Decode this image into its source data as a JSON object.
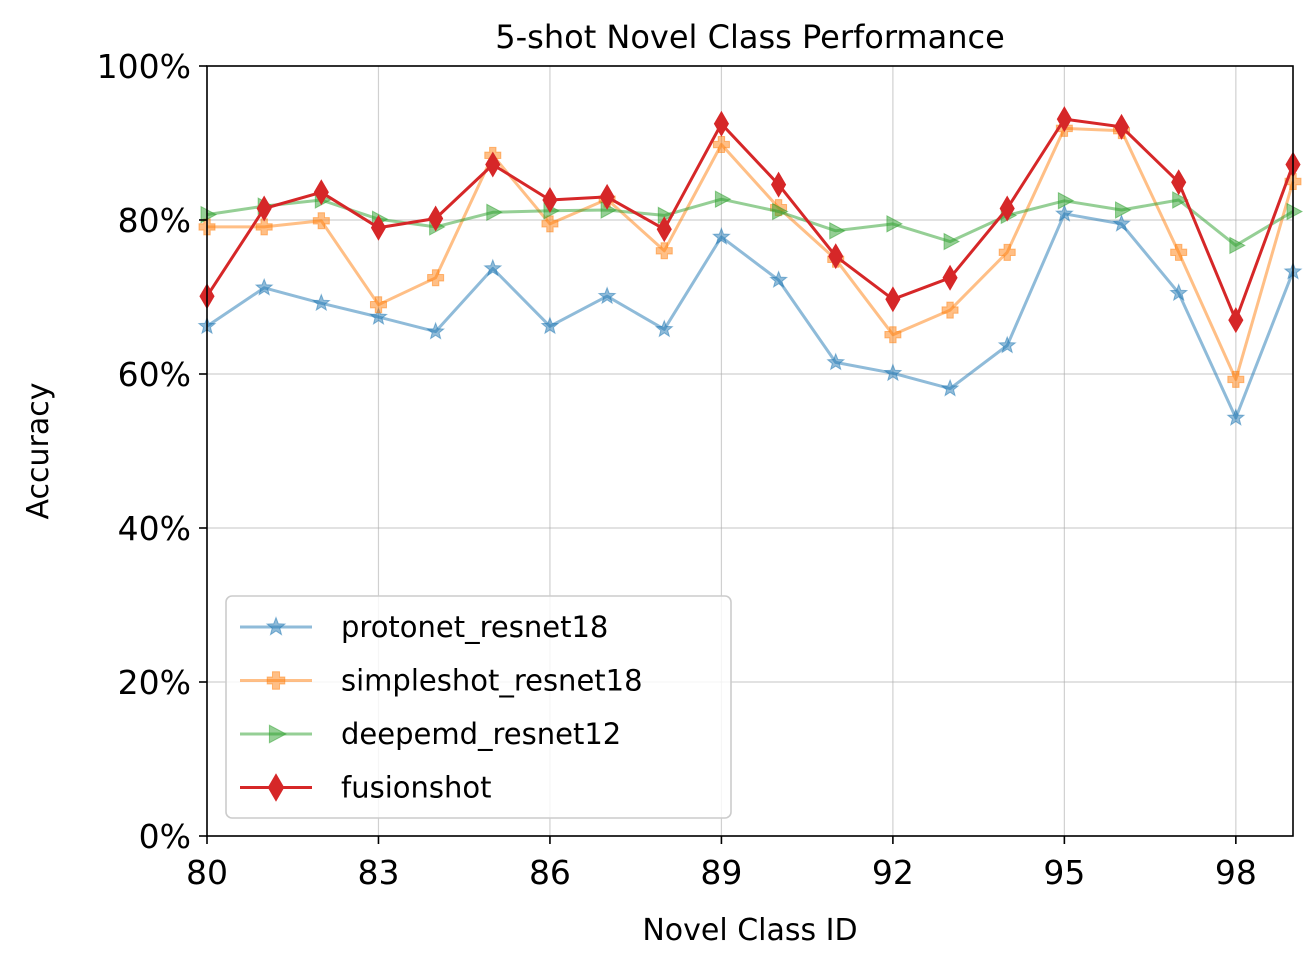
{
  "chart_data": {
    "type": "line",
    "title": "5-shot Novel Class Performance",
    "xlabel": "Novel Class ID",
    "ylabel": "Accuracy",
    "x": [
      80,
      81,
      82,
      83,
      84,
      85,
      86,
      87,
      88,
      89,
      90,
      91,
      92,
      93,
      94,
      95,
      96,
      97,
      98,
      99
    ],
    "xlim": [
      80,
      99
    ],
    "ylim": [
      0,
      1
    ],
    "xticks": [
      80,
      83,
      86,
      89,
      92,
      95,
      98
    ],
    "xtick_labels": [
      "80",
      "83",
      "86",
      "89",
      "92",
      "95",
      "98"
    ],
    "yticks": [
      0,
      0.2,
      0.4,
      0.6,
      0.8,
      1.0
    ],
    "ytick_labels": [
      "0%",
      "20%",
      "40%",
      "60%",
      "80%",
      "100%"
    ],
    "grid": true,
    "legend_position": "lower-left",
    "series": [
      {
        "name": "protonet_resnet18",
        "color": "#1f77b4",
        "alpha": 0.5,
        "marker": "star",
        "values": [
          0.662,
          0.712,
          0.692,
          0.674,
          0.655,
          0.737,
          0.662,
          0.701,
          0.658,
          0.778,
          0.722,
          0.615,
          0.601,
          0.581,
          0.637,
          0.808,
          0.795,
          0.705,
          0.543,
          0.733
        ]
      },
      {
        "name": "simpleshot_resnet18",
        "color": "#ff7f0e",
        "alpha": 0.5,
        "marker": "plus-filled",
        "values": [
          0.791,
          0.791,
          0.799,
          0.69,
          0.725,
          0.884,
          0.795,
          0.827,
          0.76,
          0.898,
          0.816,
          0.749,
          0.651,
          0.683,
          0.758,
          0.919,
          0.916,
          0.758,
          0.593,
          0.85
        ]
      },
      {
        "name": "deepemd_resnet12",
        "color": "#2ca02c",
        "alpha": 0.5,
        "marker": "triangle-right",
        "values": [
          0.807,
          0.818,
          0.826,
          0.801,
          0.791,
          0.81,
          0.812,
          0.813,
          0.806,
          0.827,
          0.811,
          0.786,
          0.795,
          0.772,
          0.806,
          0.825,
          0.813,
          0.826,
          0.767,
          0.811
        ]
      },
      {
        "name": "fusionshot",
        "color": "#d62728",
        "alpha": 1.0,
        "marker": "thin-diamond",
        "values": [
          0.701,
          0.815,
          0.836,
          0.79,
          0.802,
          0.872,
          0.826,
          0.83,
          0.788,
          0.925,
          0.846,
          0.753,
          0.697,
          0.725,
          0.815,
          0.931,
          0.921,
          0.849,
          0.67,
          0.872
        ]
      }
    ]
  }
}
